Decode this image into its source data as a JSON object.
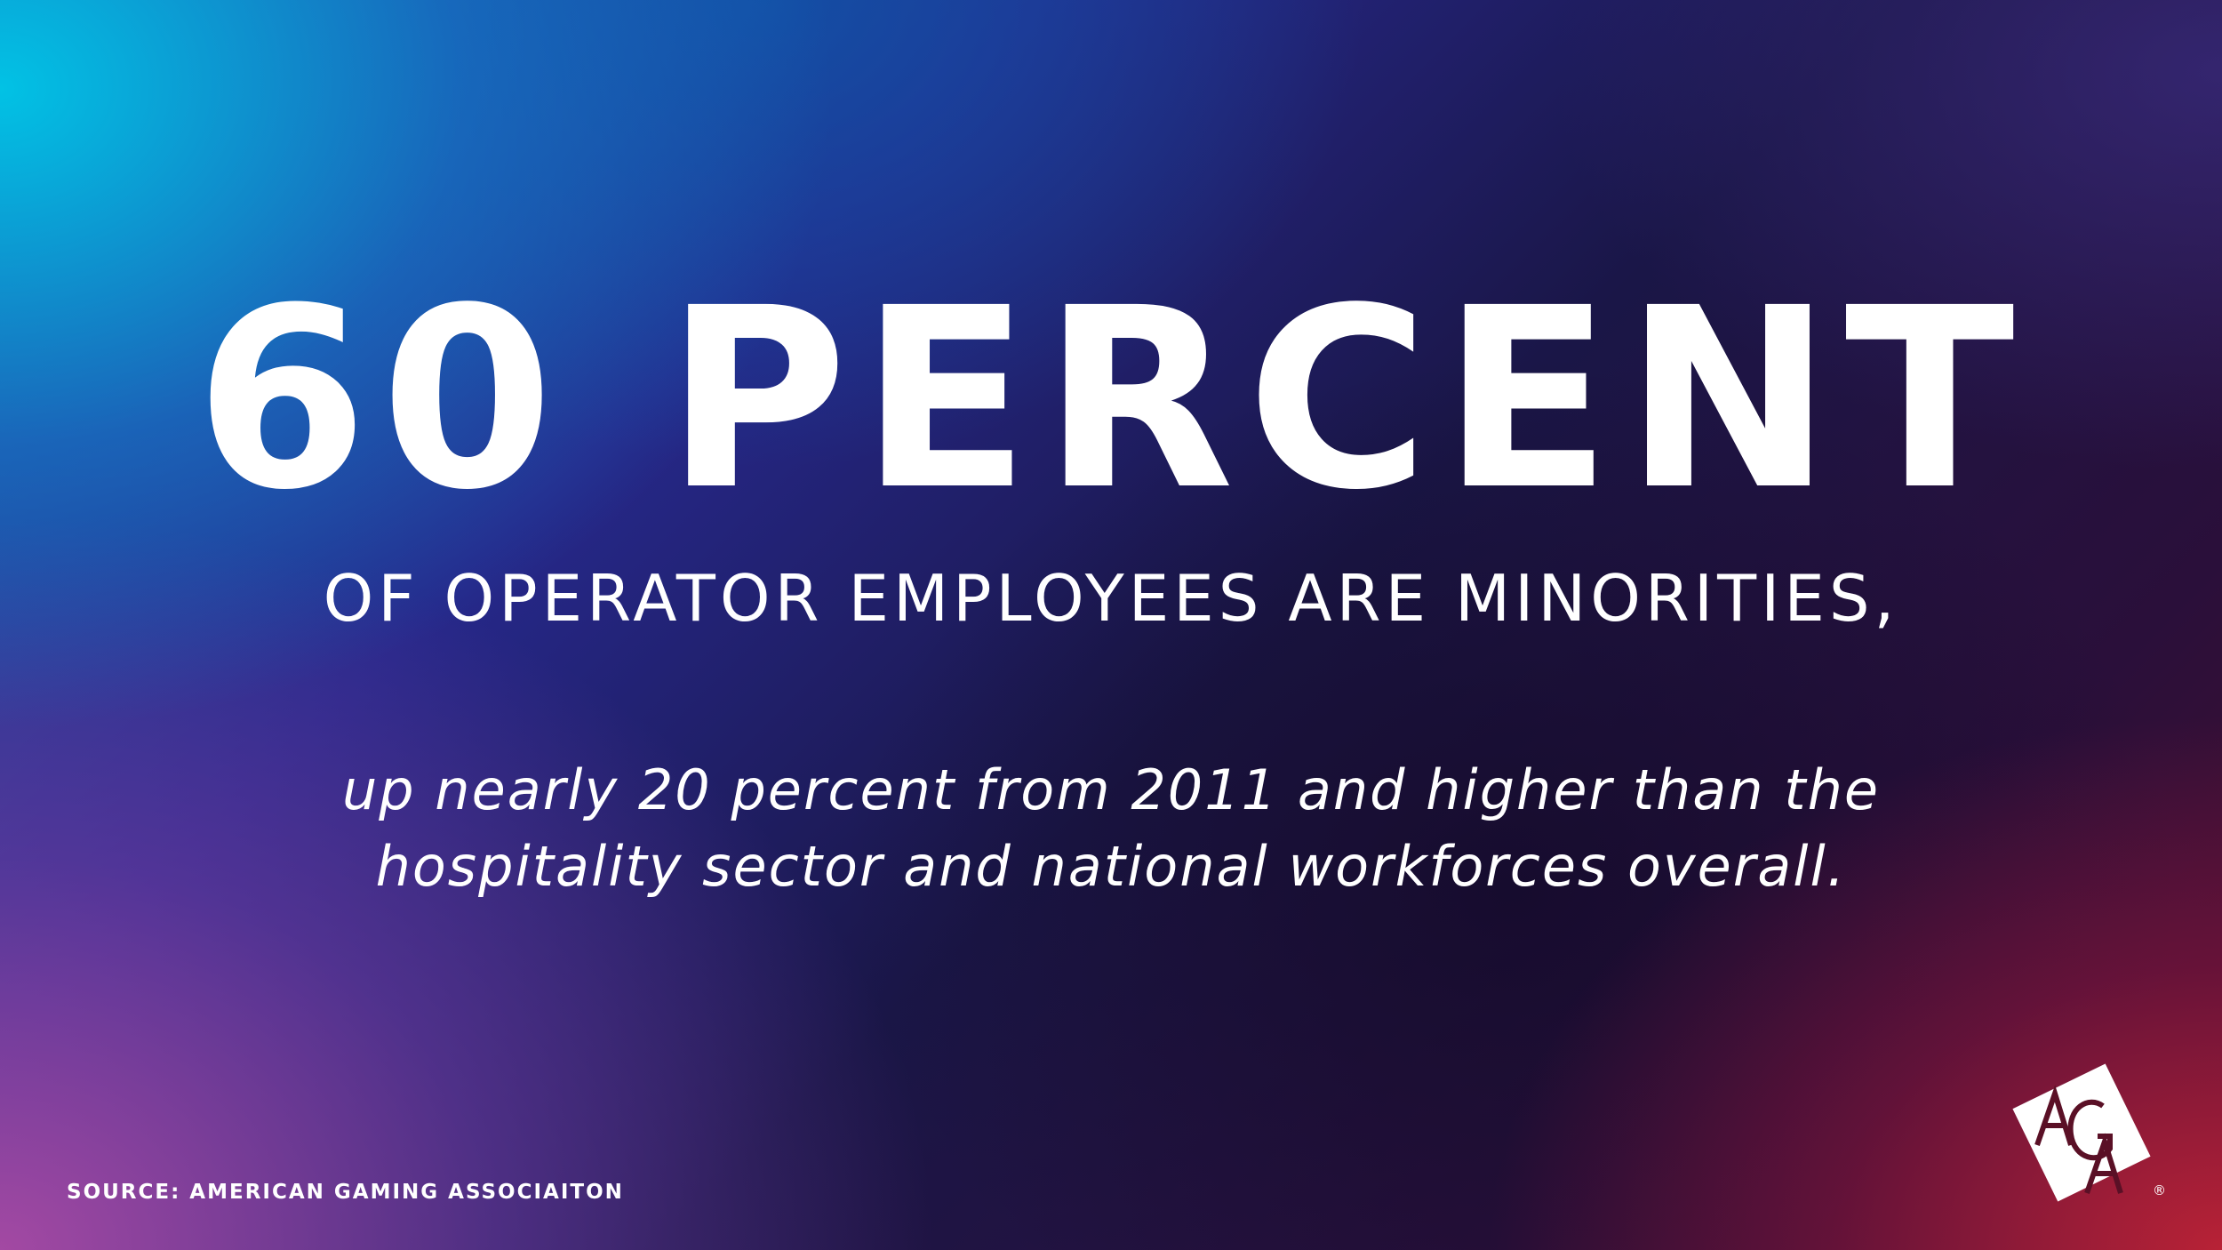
{
  "headline": "60 PERCENT",
  "subhead": "OF OPERATOR EMPLOYEES ARE MINORITIES,",
  "detail": {
    "line1": "up nearly 20 percent from 2011 and higher than the",
    "line2": "hospitality sector and national workforces overall."
  },
  "source": "SOURCE: AMERICAN GAMING ASSOCIAITON",
  "logo": {
    "letters": "AGA",
    "registered_mark": "®",
    "tile_color": "#ffffff",
    "letter_color": "#5a1026"
  }
}
